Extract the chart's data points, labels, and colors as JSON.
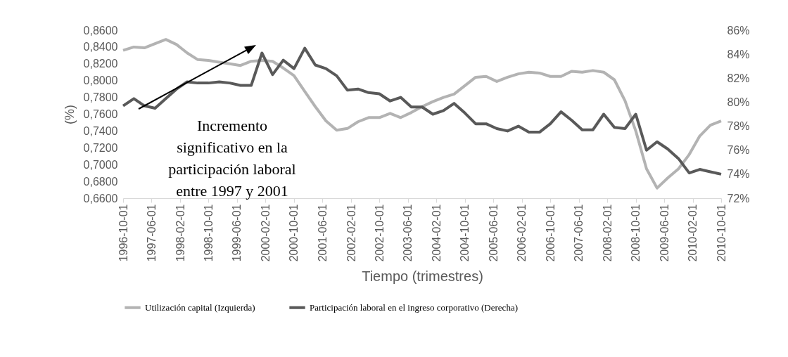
{
  "chart_data": {
    "type": "line",
    "xlabel": "Tiempo (trimestres)",
    "ylabel": "(%)",
    "legend": "bottom",
    "annotations": [
      "Incremento significativo en la participación laboral entre 1997 y 2001"
    ],
    "x": [
      "1996-10-01",
      "1997-01-01",
      "1997-04-01",
      "1997-07-01",
      "1997-10-01",
      "1998-01-01",
      "1998-04-01",
      "1998-07-01",
      "1998-10-01",
      "1999-01-01",
      "1999-04-01",
      "1999-07-01",
      "1999-10-01",
      "2000-01-01",
      "2000-04-01",
      "2000-07-01",
      "2000-10-01",
      "2001-01-01",
      "2001-04-01",
      "2001-07-01",
      "2001-10-01",
      "2002-01-01",
      "2002-04-01",
      "2002-07-01",
      "2002-10-01",
      "2003-01-01",
      "2003-04-01",
      "2003-07-01",
      "2003-10-01",
      "2004-01-01",
      "2004-04-01",
      "2004-07-01",
      "2004-10-01",
      "2005-01-01",
      "2005-04-01",
      "2005-07-01",
      "2005-10-01",
      "2006-01-01",
      "2006-04-01",
      "2006-07-01",
      "2006-10-01",
      "2007-01-01",
      "2007-04-01",
      "2007-07-01",
      "2007-10-01",
      "2008-01-01",
      "2008-04-01",
      "2008-07-01",
      "2008-10-01",
      "2009-01-01",
      "2009-04-01",
      "2009-07-01",
      "2009-10-01",
      "2010-01-01",
      "2010-04-01",
      "2010-07-01",
      "2010-10-01"
    ],
    "xlim": [
      "1996-10-01",
      "2010-10-01"
    ],
    "xticks": [
      "1996-10-01",
      "1997-06-01",
      "1998-02-01",
      "1998-10-01",
      "1999-06-01",
      "2000-02-01",
      "2000-10-01",
      "2001-06-01",
      "2002-02-01",
      "2002-10-01",
      "2003-06-01",
      "2004-02-01",
      "2004-10-01",
      "2005-06-01",
      "2006-02-01",
      "2006-10-01",
      "2007-06-01",
      "2008-02-01",
      "2008-10-01",
      "2009-06-01",
      "2010-02-01",
      "2010-10-01"
    ],
    "ylim": [
      0.66,
      0.86
    ],
    "yticks": [
      {
        "value": 0.66,
        "label": "0,6600"
      },
      {
        "value": 0.68,
        "label": "0,6800"
      },
      {
        "value": 0.7,
        "label": "0,7000"
      },
      {
        "value": 0.72,
        "label": "0,7200"
      },
      {
        "value": 0.74,
        "label": "0,7400"
      },
      {
        "value": 0.76,
        "label": "0,7600"
      },
      {
        "value": 0.78,
        "label": "0,7800"
      },
      {
        "value": 0.8,
        "label": "0,8000"
      },
      {
        "value": 0.82,
        "label": "0,8200"
      },
      {
        "value": 0.84,
        "label": "0,8400"
      },
      {
        "value": 0.86,
        "label": "0,8600"
      }
    ],
    "y2lim": [
      72,
      86
    ],
    "y2ticks": [
      {
        "value": 72,
        "label": "72%"
      },
      {
        "value": 74,
        "label": "74%"
      },
      {
        "value": 76,
        "label": "76%"
      },
      {
        "value": 78,
        "label": "78%"
      },
      {
        "value": 80,
        "label": "80%"
      },
      {
        "value": 82,
        "label": "82%"
      },
      {
        "value": 84,
        "label": "84%"
      },
      {
        "value": 86,
        "label": "86%"
      }
    ],
    "series": [
      {
        "name": "Utilización capital (Izquierda)",
        "color": "#b3b3b3",
        "values": [
          0.836,
          0.84,
          0.839,
          0.844,
          0.849,
          0.843,
          0.833,
          0.825,
          0.824,
          0.822,
          0.82,
          0.818,
          0.823,
          0.824,
          0.823,
          0.815,
          0.806,
          0.787,
          0.769,
          0.752,
          0.741,
          0.743,
          0.751,
          0.756,
          0.756,
          0.761,
          0.756,
          0.762,
          0.769,
          0.775,
          0.78,
          0.784,
          0.794,
          0.804,
          0.805,
          0.799,
          0.804,
          0.808,
          0.81,
          0.809,
          0.805,
          0.805,
          0.811,
          0.81,
          0.812,
          0.81,
          0.801,
          0.776,
          0.74,
          0.695,
          0.672,
          0.684,
          0.695,
          0.712,
          0.734,
          0.747,
          0.752
        ]
      },
      {
        "name": "Participación laboral en el ingreso corporativo (Derecha)",
        "color": "#595959",
        "axis": "y2",
        "values": [
          79.7,
          80.3,
          79.7,
          79.5,
          80.3,
          81.1,
          81.7,
          81.6,
          81.6,
          81.7,
          81.6,
          81.4,
          81.4,
          84.1,
          82.3,
          83.5,
          82.8,
          84.5,
          83.1,
          82.8,
          82.2,
          81.0,
          81.1,
          80.8,
          80.7,
          80.1,
          80.4,
          79.6,
          79.6,
          79.0,
          79.3,
          79.9,
          79.1,
          78.2,
          78.2,
          77.8,
          77.6,
          78.0,
          77.5,
          77.5,
          78.2,
          79.2,
          78.5,
          77.7,
          77.7,
          79.0,
          77.9,
          77.8,
          79.0,
          76.0,
          76.7,
          76.1,
          75.3,
          74.1,
          74.4,
          74.2,
          74.0
        ]
      }
    ]
  }
}
